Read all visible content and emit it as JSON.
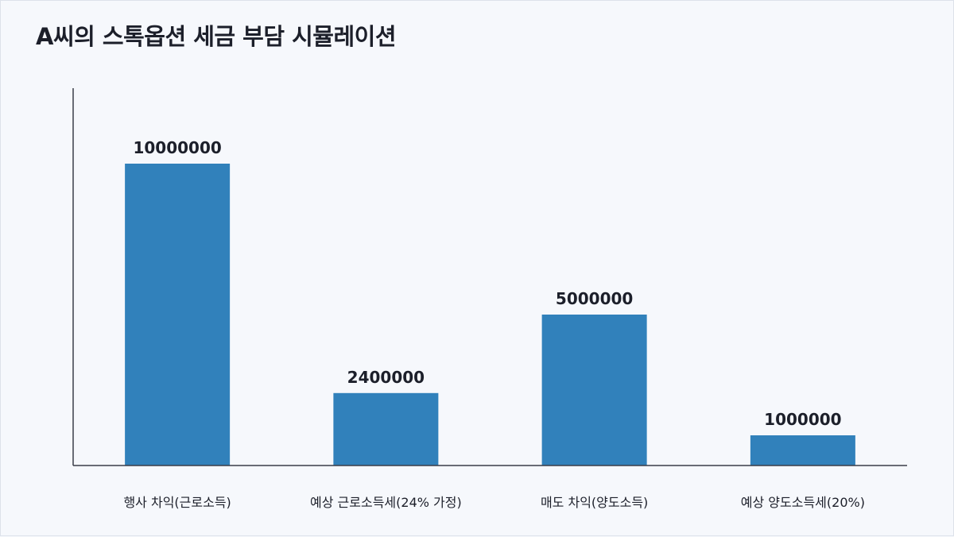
{
  "chart_data": {
    "type": "bar",
    "title": "A씨의 스톡옵션 세금 부담 시뮬레이션",
    "categories": [
      "행사 차익(근로소득)",
      "예상 근로소득세(24% 가정)",
      "매도 차익(양도소득)",
      "예상 양도소득세(20%)"
    ],
    "values": [
      10000000,
      2400000,
      5000000,
      1000000
    ],
    "ylim": [
      0,
      12500000
    ],
    "xlabel": "",
    "ylabel": "",
    "grid": false,
    "data_labels": true,
    "bar_color": "#3181bb"
  }
}
